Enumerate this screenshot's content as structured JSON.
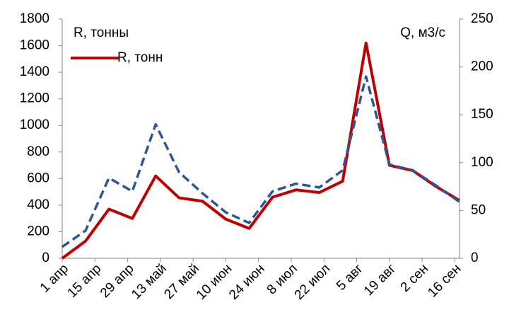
{
  "chart_data": {
    "type": "line",
    "y_label": "R, тонны",
    "y2_label": "Q, м3/с",
    "x": [
      0,
      10,
      20,
      30,
      40,
      50,
      60,
      70,
      80,
      90,
      100,
      110,
      120,
      130,
      140,
      150,
      160,
      170
    ],
    "series": [
      {
        "name": "R, тонн",
        "color": "#c00000",
        "dash": false,
        "values": [
          0,
          130,
          370,
          300,
          620,
          455,
          430,
          295,
          225,
          460,
          515,
          495,
          580,
          1620,
          700,
          660,
          540,
          435
        ]
      },
      {
        "color": "#2e5597",
        "dash": true,
        "axis": "y2",
        "values": [
          12,
          29,
          84,
          70,
          140,
          90,
          68,
          48,
          37,
          70,
          78,
          74,
          92,
          190,
          98,
          92,
          76,
          59
        ]
      }
    ],
    "xlim": [
      0,
      170
    ],
    "xticks": [
      {
        "value": 0,
        "label": "1 апр"
      },
      {
        "value": 14,
        "label": "15 апр"
      },
      {
        "value": 28,
        "label": "29 апр"
      },
      {
        "value": 42,
        "label": "13 май"
      },
      {
        "value": 56,
        "label": "27 май"
      },
      {
        "value": 70,
        "label": "10 июн"
      },
      {
        "value": 84,
        "label": "24 июн"
      },
      {
        "value": 98,
        "label": "8 июл"
      },
      {
        "value": 112,
        "label": "22 июл"
      },
      {
        "value": 126,
        "label": "5 авг"
      },
      {
        "value": 140,
        "label": "19 авг"
      },
      {
        "value": 154,
        "label": "2 сен"
      },
      {
        "value": 168,
        "label": "16 сен"
      }
    ],
    "ylim": [
      0,
      1800
    ],
    "yticks": [
      0,
      200,
      400,
      600,
      800,
      1000,
      1200,
      1400,
      1600,
      1800
    ],
    "y2lim": [
      0,
      250
    ],
    "y2ticks": [
      0,
      50,
      100,
      150,
      200,
      250
    ],
    "grid": false
  }
}
